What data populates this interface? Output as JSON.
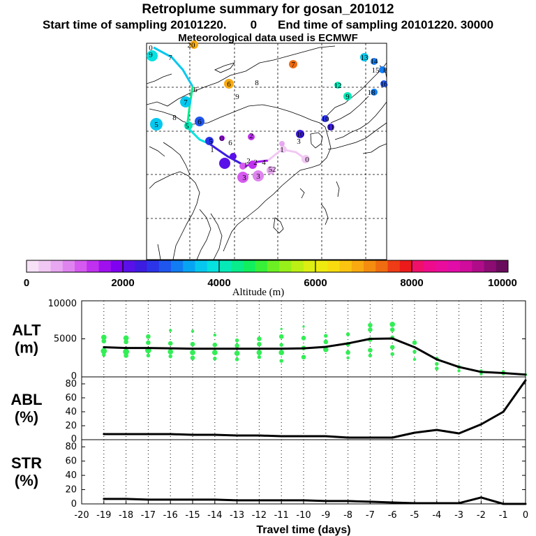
{
  "title": {
    "line1": "Retroplume summary for gosan_201012",
    "start_label": "Start time of sampling 20101220.",
    "start_hour": "0",
    "end_label": "End time of sampling 20101220. 30000",
    "line3": "Meteorological data used is ECMWF"
  },
  "colorbar": {
    "ticks": [
      "0",
      "2000",
      "4000",
      "6000",
      "8000",
      "10000"
    ],
    "label": "Altitude (m)",
    "range": [
      0,
      10000
    ],
    "colors": [
      "#f7e1f7",
      "#f1c8f3",
      "#e8a8f1",
      "#df84ef",
      "#d55aef",
      "#c030ef",
      "#a010ef",
      "#8000f0",
      "#5a10e8",
      "#3c1ce0",
      "#2b34e8",
      "#1f56ee",
      "#127cf2",
      "#08a4f4",
      "#06c8ee",
      "#05e2e0",
      "#06eab8",
      "#08ec8c",
      "#12ef5e",
      "#38f038",
      "#6cf024",
      "#98f01a",
      "#bcef14",
      "#dcee12",
      "#eeea10",
      "#f8dc10",
      "#fac410",
      "#f8aa10",
      "#f48c10",
      "#f06c10",
      "#ee3c16",
      "#ec1a1a",
      "#f0106a",
      "#ee0c8c",
      "#ea0c9c",
      "#e20ca8",
      "#d00c9c",
      "#b00c8a",
      "#8c0c74",
      "#6a0c5c"
    ]
  },
  "map": {
    "track_labels": [
      "0",
      "1",
      "2",
      "3",
      "4",
      "5",
      "6",
      "7",
      "8",
      "9",
      "10",
      "11",
      "12",
      "13",
      "14",
      "15",
      "16",
      "17",
      "18",
      "19",
      "20"
    ]
  },
  "chart_data": [
    {
      "type": "line",
      "panel": "ALT",
      "ylabel_line1": "ALT",
      "ylabel_line2": "(m)",
      "x": [
        -19,
        -18,
        -17,
        -16,
        -15,
        -14,
        -13,
        -12,
        -11,
        -10,
        -9,
        -8,
        -7,
        -6,
        -5,
        -4,
        -3,
        -2,
        -1,
        0
      ],
      "values": [
        3900,
        3800,
        3800,
        3750,
        3700,
        3700,
        3700,
        3700,
        3700,
        3750,
        3950,
        4400,
        5000,
        5050,
        3900,
        2300,
        1300,
        650,
        500,
        300
      ],
      "ylim": [
        0,
        10000
      ],
      "yticks": [
        "0",
        "5000",
        "10000"
      ],
      "scatter_color": "#33ee55",
      "scatter_points": [
        [
          -19,
          5200,
          7
        ],
        [
          -19,
          4700,
          6
        ],
        [
          -19,
          3400,
          8
        ],
        [
          -19,
          2900,
          5
        ],
        [
          -18,
          5100,
          7
        ],
        [
          -18,
          4600,
          6
        ],
        [
          -18,
          3300,
          8
        ],
        [
          -18,
          2800,
          6
        ],
        [
          -17,
          5300,
          6
        ],
        [
          -17,
          4500,
          6
        ],
        [
          -17,
          3500,
          8
        ],
        [
          -17,
          2800,
          5
        ],
        [
          -16,
          6100,
          4
        ],
        [
          -16,
          4400,
          6
        ],
        [
          -16,
          3300,
          7
        ],
        [
          -16,
          2700,
          5
        ],
        [
          -15,
          6000,
          4
        ],
        [
          -15,
          4300,
          6
        ],
        [
          -15,
          3200,
          7
        ],
        [
          -15,
          2500,
          6
        ],
        [
          -14,
          5500,
          4
        ],
        [
          -14,
          4200,
          6
        ],
        [
          -14,
          3200,
          7
        ],
        [
          -14,
          2400,
          5
        ],
        [
          -13,
          4800,
          5
        ],
        [
          -13,
          4100,
          6
        ],
        [
          -13,
          3100,
          7
        ],
        [
          -13,
          2300,
          5
        ],
        [
          -12,
          5000,
          6
        ],
        [
          -12,
          4300,
          6
        ],
        [
          -12,
          3200,
          7
        ],
        [
          -12,
          2600,
          5
        ],
        [
          -11,
          6300,
          3
        ],
        [
          -11,
          5300,
          6
        ],
        [
          -11,
          4200,
          5
        ],
        [
          -11,
          3200,
          7
        ],
        [
          -11,
          2100,
          5
        ],
        [
          -10,
          6600,
          3
        ],
        [
          -10,
          5100,
          6
        ],
        [
          -10,
          3800,
          6
        ],
        [
          -10,
          2600,
          6
        ],
        [
          -9,
          5400,
          5
        ],
        [
          -9,
          4600,
          6
        ],
        [
          -9,
          3600,
          7
        ],
        [
          -8,
          5600,
          5
        ],
        [
          -8,
          4300,
          6
        ],
        [
          -8,
          3200,
          6
        ],
        [
          -8,
          2500,
          4
        ],
        [
          -7,
          6800,
          6
        ],
        [
          -7,
          6200,
          6
        ],
        [
          -7,
          4900,
          6
        ],
        [
          -7,
          3500,
          6
        ],
        [
          -7,
          2800,
          5
        ],
        [
          -6,
          6900,
          7
        ],
        [
          -6,
          6200,
          6
        ],
        [
          -6,
          5200,
          5
        ],
        [
          -6,
          3900,
          6
        ],
        [
          -6,
          3000,
          5
        ],
        [
          -5,
          4500,
          6
        ],
        [
          -5,
          3300,
          5
        ],
        [
          -5,
          2300,
          4
        ],
        [
          -4,
          2400,
          5
        ],
        [
          -4,
          1700,
          5
        ],
        [
          -4,
          1100,
          5
        ],
        [
          -3,
          1300,
          5
        ],
        [
          -3,
          800,
          4
        ],
        [
          -2,
          800,
          4
        ],
        [
          -2,
          400,
          4
        ],
        [
          -1,
          700,
          4
        ],
        [
          -1,
          400,
          4
        ],
        [
          0,
          300,
          4
        ]
      ]
    },
    {
      "type": "line",
      "panel": "ABL",
      "ylabel_line1": "ABL",
      "ylabel_line2": "(%)",
      "x": [
        -19,
        -18,
        -17,
        -16,
        -15,
        -14,
        -13,
        -12,
        -11,
        -10,
        -9,
        -8,
        -7,
        -6,
        -5,
        -4,
        -3,
        -2,
        -1,
        0
      ],
      "values": [
        8,
        8,
        8,
        8,
        7,
        7,
        6,
        6,
        5,
        5,
        5,
        3,
        3,
        3,
        10,
        14,
        9,
        22,
        40,
        85
      ],
      "ylim": [
        0,
        90
      ],
      "yticks": [
        "0",
        "20",
        "40",
        "60",
        "80"
      ]
    },
    {
      "type": "line",
      "panel": "STR",
      "ylabel_line1": "STR",
      "ylabel_line2": "(%)",
      "x": [
        -19,
        -18,
        -17,
        -16,
        -15,
        -14,
        -13,
        -12,
        -11,
        -10,
        -9,
        -8,
        -7,
        -6,
        -5,
        -4,
        -3,
        -2,
        -1,
        0
      ],
      "values": [
        7,
        7,
        6,
        6,
        6,
        6,
        5,
        5,
        5,
        5,
        4,
        4,
        3,
        2,
        1,
        1,
        1,
        9,
        0,
        0
      ],
      "ylim": [
        0,
        90
      ],
      "yticks": [
        "0",
        "20",
        "40",
        "60",
        "80"
      ],
      "xlabel": "Travel time (days)",
      "xticks": [
        "-20",
        "-19",
        "-18",
        "-17",
        "-16",
        "-15",
        "-14",
        "-13",
        "-12",
        "-11",
        "-10",
        "-9",
        "-8",
        "-7",
        "-6",
        "-5",
        "-4",
        "-3",
        "-2",
        "-1",
        "0"
      ],
      "xlim": [
        -20,
        0
      ]
    }
  ]
}
